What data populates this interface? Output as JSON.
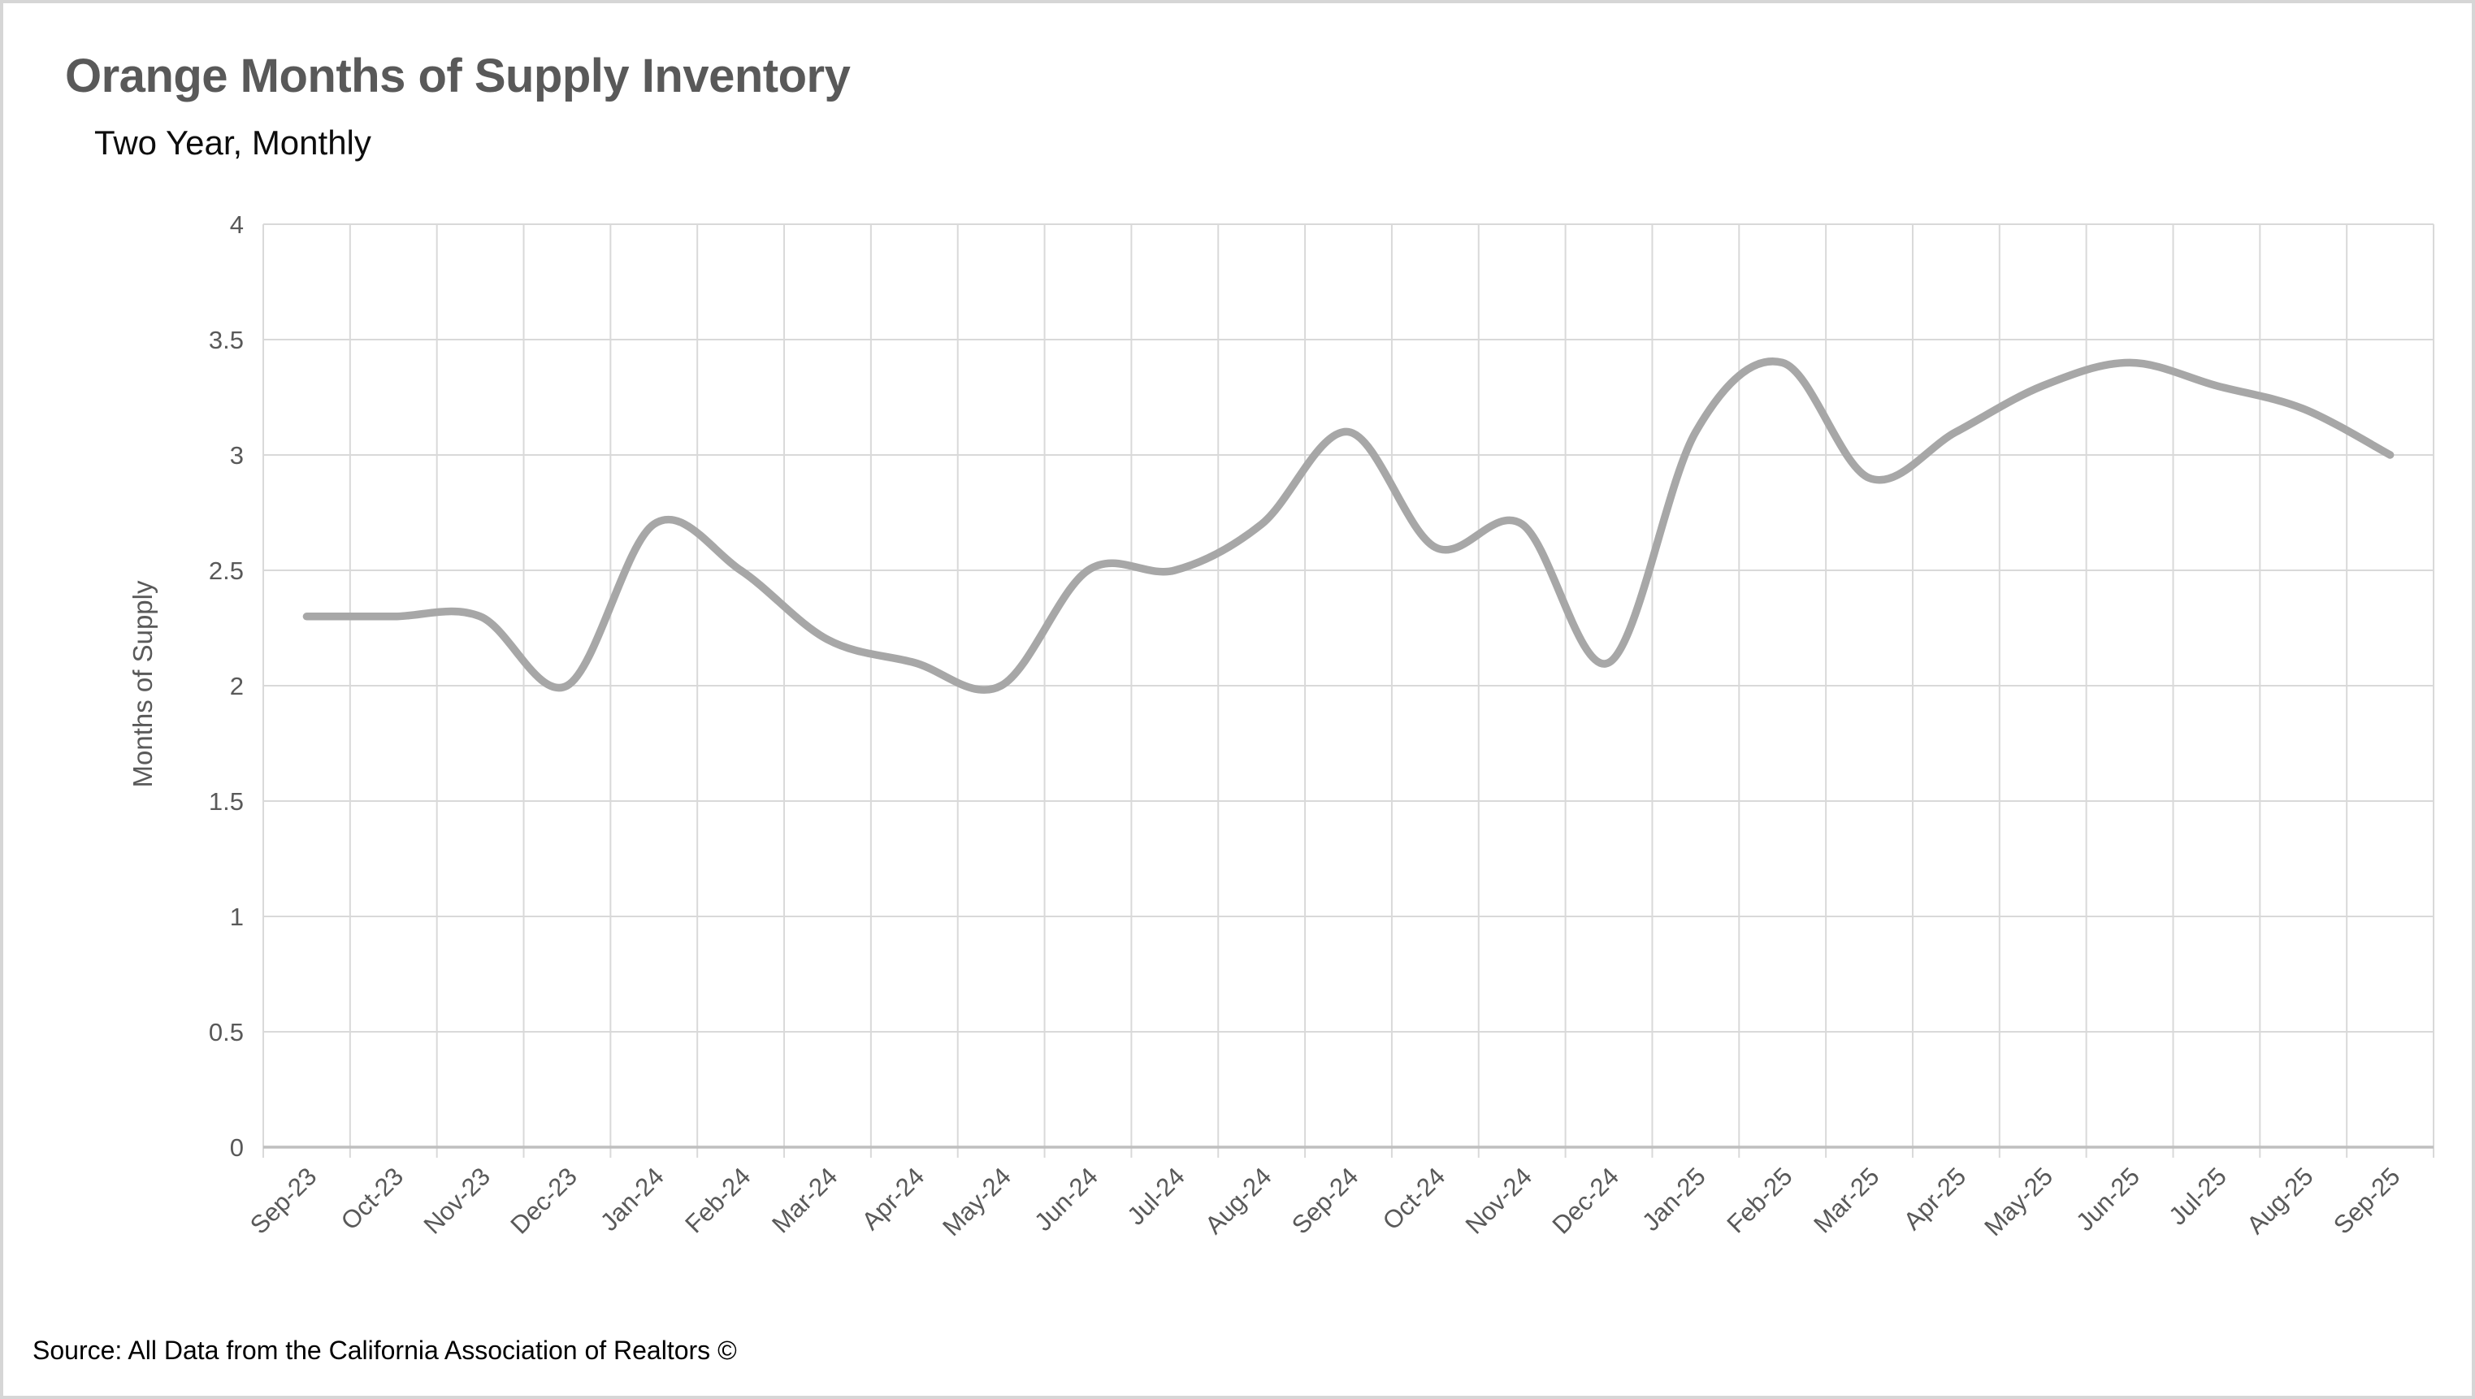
{
  "chart_data": {
    "type": "line",
    "title": "Orange Months of Supply Inventory",
    "subtitle": "Two Year, Monthly",
    "ylabel": "Months of Supply",
    "xlabel": "",
    "source": "Source: All Data from the California Association of Realtors ©",
    "categories": [
      "Sep-23",
      "Oct-23",
      "Nov-23",
      "Dec-23",
      "Jan-24",
      "Feb-24",
      "Mar-24",
      "Apr-24",
      "May-24",
      "Jun-24",
      "Jul-24",
      "Aug-24",
      "Sep-24",
      "Oct-24",
      "Nov-24",
      "Dec-24",
      "Jan-25",
      "Feb-25",
      "Mar-25",
      "Apr-25",
      "May-25",
      "Jun-25",
      "Jul-25",
      "Aug-25",
      "Sep-25"
    ],
    "series": [
      {
        "name": "Months of Supply",
        "values": [
          2.3,
          2.3,
          2.3,
          2.0,
          2.7,
          2.5,
          2.2,
          2.1,
          2.0,
          2.5,
          2.5,
          2.7,
          3.1,
          2.6,
          2.7,
          2.1,
          3.1,
          3.4,
          2.9,
          3.1,
          3.3,
          3.4,
          3.3,
          3.2,
          3.0
        ]
      }
    ],
    "ylim": [
      0,
      4
    ],
    "ytick_step": 0.5,
    "y_tick_labels": [
      "4",
      "3.5",
      "3",
      "2.5",
      "2",
      "1.5",
      "1",
      "0.5",
      "0"
    ],
    "grid": true,
    "legend": "none",
    "line_smoothing": true,
    "colors": {
      "line": "#a7a7a7",
      "gridline": "#d9d9d9",
      "axis_line": "#bfbfbf",
      "tick_label": "#595959",
      "title": "#595959",
      "subtitle": "#0d0d0d",
      "source": "#000000"
    }
  }
}
